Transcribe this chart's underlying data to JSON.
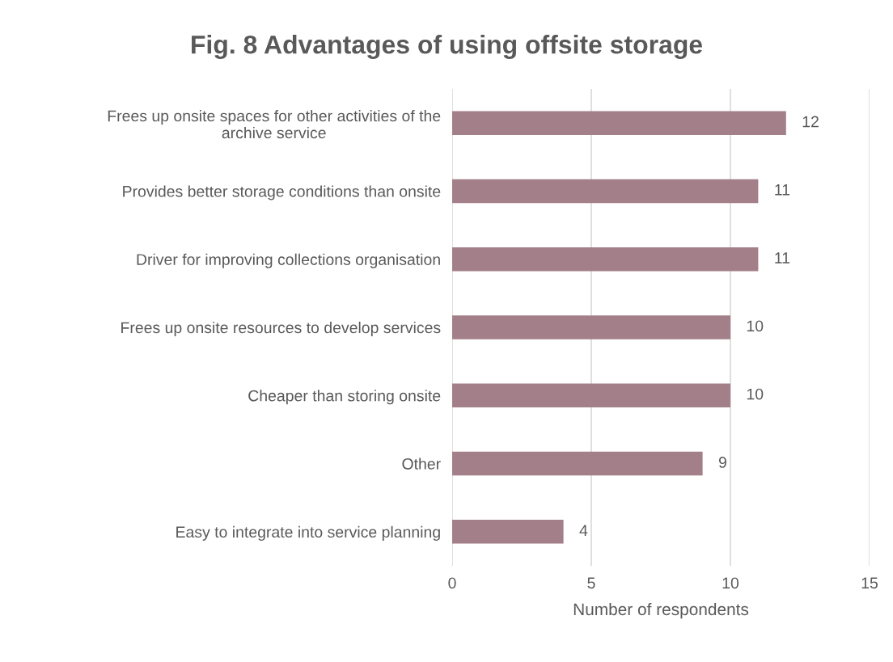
{
  "chart_data": {
    "type": "bar",
    "orientation": "horizontal",
    "title": "Fig. 8 Advantages of using offsite storage",
    "xlabel": "Number of respondents",
    "categories": [
      "Frees up onsite spaces for other activities of the\narchive service",
      "Provides better storage conditions than onsite",
      "Driver for improving collections organisation",
      "Frees up onsite resources to develop services",
      "Cheaper than storing onsite",
      "Other",
      "Easy to integrate into service planning"
    ],
    "values": [
      12,
      11,
      11,
      10,
      10,
      9,
      4
    ],
    "color": "#a37f8a",
    "xlim": [
      0,
      15
    ],
    "xticks": [
      0,
      5,
      10,
      15
    ],
    "grid": "x",
    "data_labels": true
  }
}
